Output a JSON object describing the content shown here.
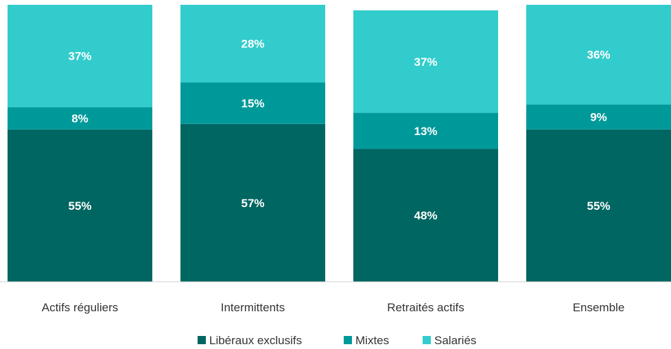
{
  "chart_data": {
    "type": "bar",
    "stacked": true,
    "normalized": true,
    "categories": [
      "Actifs réguliers",
      "Intermittents",
      "Retraités actifs",
      "Ensemble"
    ],
    "series": [
      {
        "name": "Libéraux exclusifs",
        "color": "#006661",
        "values": [
          55,
          57,
          48,
          55
        ],
        "labels": [
          "55%",
          "57%",
          "48%",
          "55%"
        ]
      },
      {
        "name": "Mixtes",
        "color": "#00999A",
        "values": [
          8,
          15,
          13,
          9
        ],
        "labels": [
          "8%",
          "15%",
          "13%",
          "9%"
        ]
      },
      {
        "name": "Salariés",
        "color": "#33CCCC",
        "values": [
          37,
          28,
          37,
          36
        ],
        "labels": [
          "37%",
          "28%",
          "37%",
          "36%"
        ]
      }
    ],
    "ylim": [
      0,
      100
    ],
    "grid": false,
    "legend_position": "bottom"
  }
}
